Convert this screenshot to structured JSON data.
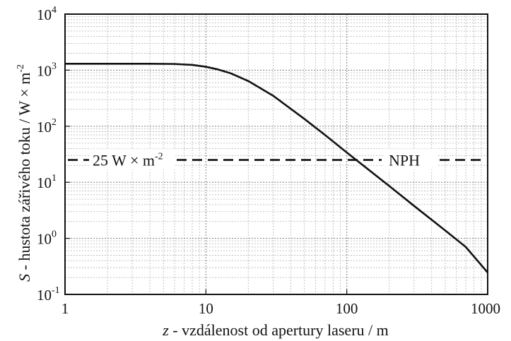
{
  "chart_data": {
    "type": "line",
    "title": "",
    "xlabel": {
      "symbol": "z",
      "text": " - vzdálenost od apertury laseru / m"
    },
    "ylabel": {
      "symbol": "S",
      "text": " - hustota zářivého toku / W × m",
      "sup": "-2"
    },
    "x_scale": "log",
    "y_scale": "log",
    "xlim": [
      1,
      1000
    ],
    "ylim": [
      0.1,
      10000
    ],
    "grid": true,
    "x_ticks": [
      {
        "value": 1,
        "label": "1"
      },
      {
        "value": 10,
        "label": "10"
      },
      {
        "value": 100,
        "label": "100"
      },
      {
        "value": 1000,
        "label": "1000"
      }
    ],
    "y_ticks": [
      {
        "value": 0.1,
        "base": "10",
        "exp": "-1"
      },
      {
        "value": 1,
        "base": "10",
        "exp": "0"
      },
      {
        "value": 10,
        "base": "10",
        "exp": "1"
      },
      {
        "value": 100,
        "base": "10",
        "exp": "2"
      },
      {
        "value": 1000,
        "base": "10",
        "exp": "3"
      },
      {
        "value": 10000,
        "base": "10",
        "exp": "4"
      }
    ],
    "series": [
      {
        "style": "solid",
        "color": "#111111",
        "x": [
          1,
          2,
          4,
          6,
          8,
          10,
          12,
          15,
          20,
          30,
          50,
          70,
          100,
          200,
          300,
          500,
          700,
          1000
        ],
        "y": [
          1300,
          1300,
          1300,
          1290,
          1240,
          1150,
          1040,
          880,
          640,
          350,
          135,
          70,
          34,
          8.6,
          3.8,
          1.38,
          0.7,
          0.245
        ]
      }
    ],
    "reference_line": {
      "value": 25,
      "style": "dashed",
      "label": {
        "prefix": "25 W × m",
        "sup": "-2"
      },
      "label_right": "NPH"
    }
  }
}
